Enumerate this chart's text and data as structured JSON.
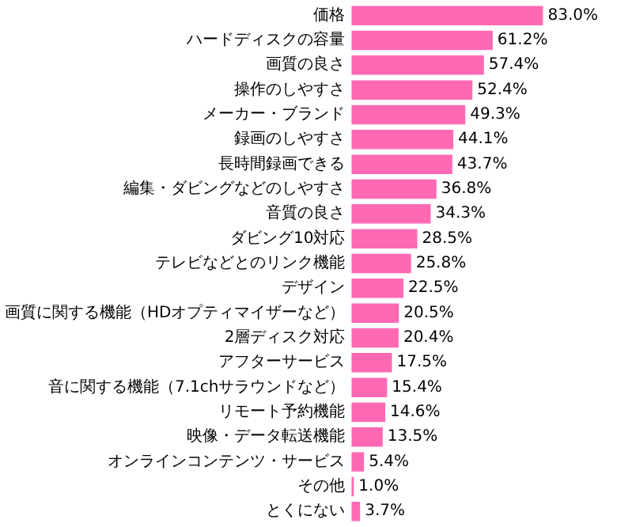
{
  "chart_data": {
    "type": "bar",
    "orientation": "horizontal",
    "color": "#ff69b4",
    "categories": [
      "価格",
      "ハードディスクの容量",
      "画質の良さ",
      "操作のしやすさ",
      "メーカー・ブランド",
      "録画のしやすさ",
      "長時間録画できる",
      "編集・ダビングなどのしやすさ",
      "音質の良さ",
      "ダビング10対応",
      "テレビなどとのリンク機能",
      "デザイン",
      "画質に関する機能（HDオプティマイザーなど）",
      "2層ディスク対応",
      "アフターサービス",
      "音に関する機能（7.1chサラウンドなど）",
      "リモート予約機能",
      "映像・データ転送機能",
      "オンラインコンテンツ・サービス",
      "その他",
      "とくにない"
    ],
    "values": [
      83.0,
      61.2,
      57.4,
      52.4,
      49.3,
      44.1,
      43.7,
      36.8,
      34.3,
      28.5,
      25.8,
      22.5,
      20.5,
      20.4,
      17.5,
      15.4,
      14.6,
      13.5,
      5.4,
      1.0,
      3.7
    ],
    "value_labels": [
      "83.0%",
      "61.2%",
      "57.4%",
      "52.4%",
      "49.3%",
      "44.1%",
      "43.7%",
      "36.8%",
      "34.3%",
      "28.5%",
      "25.8%",
      "22.5%",
      "20.5%",
      "20.4%",
      "17.5%",
      "15.4%",
      "14.6%",
      "13.5%",
      "5.4%",
      "1.0%",
      "3.7%"
    ],
    "grid": false
  }
}
